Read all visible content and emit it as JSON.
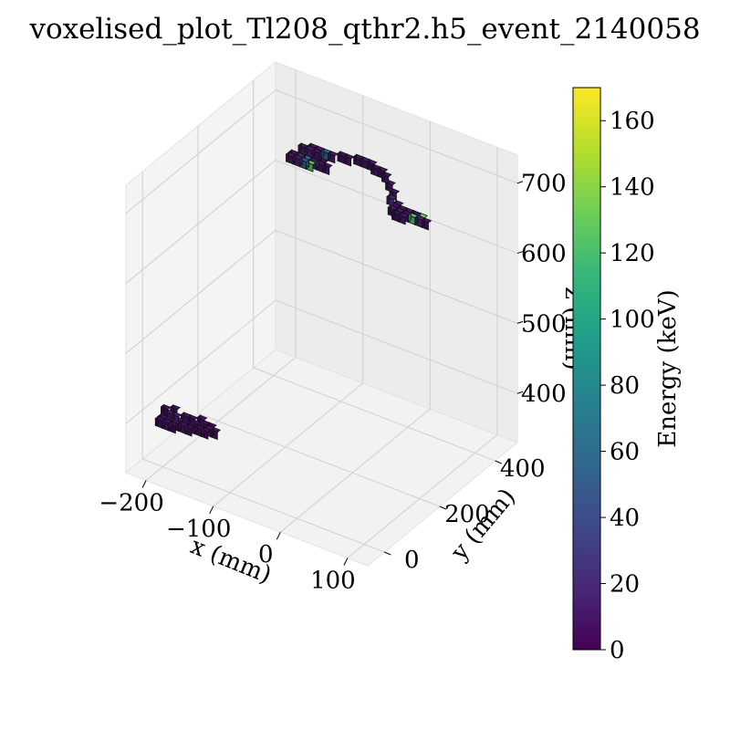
{
  "chart_data": {
    "type": "scatter",
    "title": "voxelised_plot_Tl208_qthr2.h5_event_2140058",
    "xlabel": "x (mm)",
    "ylabel": "y (mm)",
    "zlabel": "z (mm)",
    "x_ticks": [
      "−200",
      "−100",
      "0",
      "100"
    ],
    "y_ticks": [
      "0",
      "200",
      "400"
    ],
    "z_ticks": [
      "400",
      "500",
      "600",
      "700"
    ],
    "xlim": [
      -230,
      130
    ],
    "ylim": [
      -60,
      480
    ],
    "zlim": [
      330,
      740
    ],
    "grid": true,
    "colorbar": {
      "label": "Energy (keV)",
      "colormap": "viridis",
      "range": [
        0,
        170
      ],
      "ticks": [
        "0",
        "20",
        "40",
        "60",
        "80",
        "100",
        "120",
        "140",
        "160"
      ]
    },
    "clusters": [
      {
        "voxels": [
          {
            "x": -215,
            "y": 10,
            "z": 380,
            "e": 6
          },
          {
            "x": -205,
            "y": 10,
            "z": 380,
            "e": 8
          },
          {
            "x": -195,
            "y": 10,
            "z": 380,
            "e": 5
          },
          {
            "x": -215,
            "y": 20,
            "z": 380,
            "e": 10
          },
          {
            "x": -205,
            "y": 20,
            "z": 380,
            "e": 12
          },
          {
            "x": -195,
            "y": 20,
            "z": 380,
            "e": 7
          },
          {
            "x": -185,
            "y": 20,
            "z": 380,
            "e": 9
          },
          {
            "x": -175,
            "y": 20,
            "z": 380,
            "e": 6
          },
          {
            "x": -205,
            "y": 30,
            "z": 380,
            "e": 4
          },
          {
            "x": -195,
            "y": 30,
            "z": 380,
            "e": 11
          },
          {
            "x": -185,
            "y": 30,
            "z": 380,
            "e": 14
          },
          {
            "x": -175,
            "y": 30,
            "z": 380,
            "e": 8
          },
          {
            "x": -165,
            "y": 30,
            "z": 380,
            "e": 6
          },
          {
            "x": -155,
            "y": 30,
            "z": 380,
            "e": 5
          },
          {
            "x": -185,
            "y": 40,
            "z": 380,
            "e": 7
          },
          {
            "x": -175,
            "y": 40,
            "z": 380,
            "e": 9
          },
          {
            "x": -165,
            "y": 40,
            "z": 380,
            "e": 13
          },
          {
            "x": -155,
            "y": 40,
            "z": 380,
            "e": 10
          },
          {
            "x": -145,
            "y": 40,
            "z": 380,
            "e": 8
          },
          {
            "x": -165,
            "y": 50,
            "z": 380,
            "e": 6
          },
          {
            "x": -155,
            "y": 50,
            "z": 380,
            "e": 4
          },
          {
            "x": -205,
            "y": 20,
            "z": 390,
            "e": 12
          },
          {
            "x": -195,
            "y": 20,
            "z": 390,
            "e": 16
          },
          {
            "x": -185,
            "y": 30,
            "z": 390,
            "e": 10
          },
          {
            "x": -175,
            "y": 30,
            "z": 390,
            "e": 7
          },
          {
            "x": -165,
            "y": 40,
            "z": 390,
            "e": 9
          },
          {
            "x": -215,
            "y": 30,
            "z": 390,
            "e": 5
          },
          {
            "x": -205,
            "y": 40,
            "z": 390,
            "e": 8
          }
        ]
      },
      {
        "voxels": [
          {
            "x": -140,
            "y": 300,
            "z": 690,
            "e": 10
          },
          {
            "x": -130,
            "y": 300,
            "z": 690,
            "e": 14
          },
          {
            "x": -120,
            "y": 300,
            "z": 690,
            "e": 48
          },
          {
            "x": -110,
            "y": 300,
            "z": 690,
            "e": 125
          },
          {
            "x": -140,
            "y": 310,
            "z": 690,
            "e": 8
          },
          {
            "x": -130,
            "y": 310,
            "z": 690,
            "e": 20
          },
          {
            "x": -120,
            "y": 310,
            "z": 690,
            "e": 60
          },
          {
            "x": -110,
            "y": 310,
            "z": 690,
            "e": 12
          },
          {
            "x": -100,
            "y": 310,
            "z": 690,
            "e": 9
          },
          {
            "x": -90,
            "y": 310,
            "z": 690,
            "e": 11
          },
          {
            "x": -130,
            "y": 320,
            "z": 690,
            "e": 15
          },
          {
            "x": -120,
            "y": 320,
            "z": 690,
            "e": 18
          },
          {
            "x": -110,
            "y": 320,
            "z": 690,
            "e": 22
          },
          {
            "x": -100,
            "y": 320,
            "z": 690,
            "e": 8
          },
          {
            "x": -130,
            "y": 320,
            "z": 700,
            "e": 12
          },
          {
            "x": -120,
            "y": 320,
            "z": 700,
            "e": 16
          },
          {
            "x": -110,
            "y": 320,
            "z": 700,
            "e": 10
          },
          {
            "x": -120,
            "y": 330,
            "z": 700,
            "e": 9
          },
          {
            "x": -110,
            "y": 330,
            "z": 700,
            "e": 14
          },
          {
            "x": -100,
            "y": 330,
            "z": 700,
            "e": 55
          },
          {
            "x": -90,
            "y": 330,
            "z": 700,
            "e": 12
          },
          {
            "x": -80,
            "y": 340,
            "z": 700,
            "e": 8
          },
          {
            "x": -70,
            "y": 340,
            "z": 700,
            "e": 10
          },
          {
            "x": -60,
            "y": 350,
            "z": 700,
            "e": 9
          },
          {
            "x": -50,
            "y": 350,
            "z": 700,
            "e": 12
          },
          {
            "x": -40,
            "y": 350,
            "z": 700,
            "e": 11
          },
          {
            "x": -30,
            "y": 340,
            "z": 700,
            "e": 8
          },
          {
            "x": -20,
            "y": 340,
            "z": 700,
            "e": 10
          },
          {
            "x": -10,
            "y": 330,
            "z": 700,
            "e": 9
          },
          {
            "x": 0,
            "y": 320,
            "z": 695,
            "e": 12
          },
          {
            "x": 10,
            "y": 310,
            "z": 690,
            "e": 10
          },
          {
            "x": 20,
            "y": 300,
            "z": 680,
            "e": 14
          },
          {
            "x": 20,
            "y": 290,
            "z": 680,
            "e": 8
          },
          {
            "x": 30,
            "y": 290,
            "z": 680,
            "e": 12
          },
          {
            "x": 40,
            "y": 290,
            "z": 680,
            "e": 11
          },
          {
            "x": 50,
            "y": 290,
            "z": 680,
            "e": 9
          },
          {
            "x": 60,
            "y": 290,
            "z": 680,
            "e": 135
          },
          {
            "x": 20,
            "y": 280,
            "z": 680,
            "e": 13
          },
          {
            "x": 30,
            "y": 280,
            "z": 680,
            "e": 16
          },
          {
            "x": 40,
            "y": 280,
            "z": 680,
            "e": 10
          },
          {
            "x": 50,
            "y": 280,
            "z": 680,
            "e": 122
          },
          {
            "x": 60,
            "y": 280,
            "z": 680,
            "e": 18
          },
          {
            "x": 70,
            "y": 280,
            "z": 680,
            "e": 9
          },
          {
            "x": 30,
            "y": 270,
            "z": 680,
            "e": 7
          },
          {
            "x": 40,
            "y": 270,
            "z": 680,
            "e": 12
          },
          {
            "x": 10,
            "y": 300,
            "z": 685,
            "e": 20
          }
        ]
      }
    ]
  }
}
